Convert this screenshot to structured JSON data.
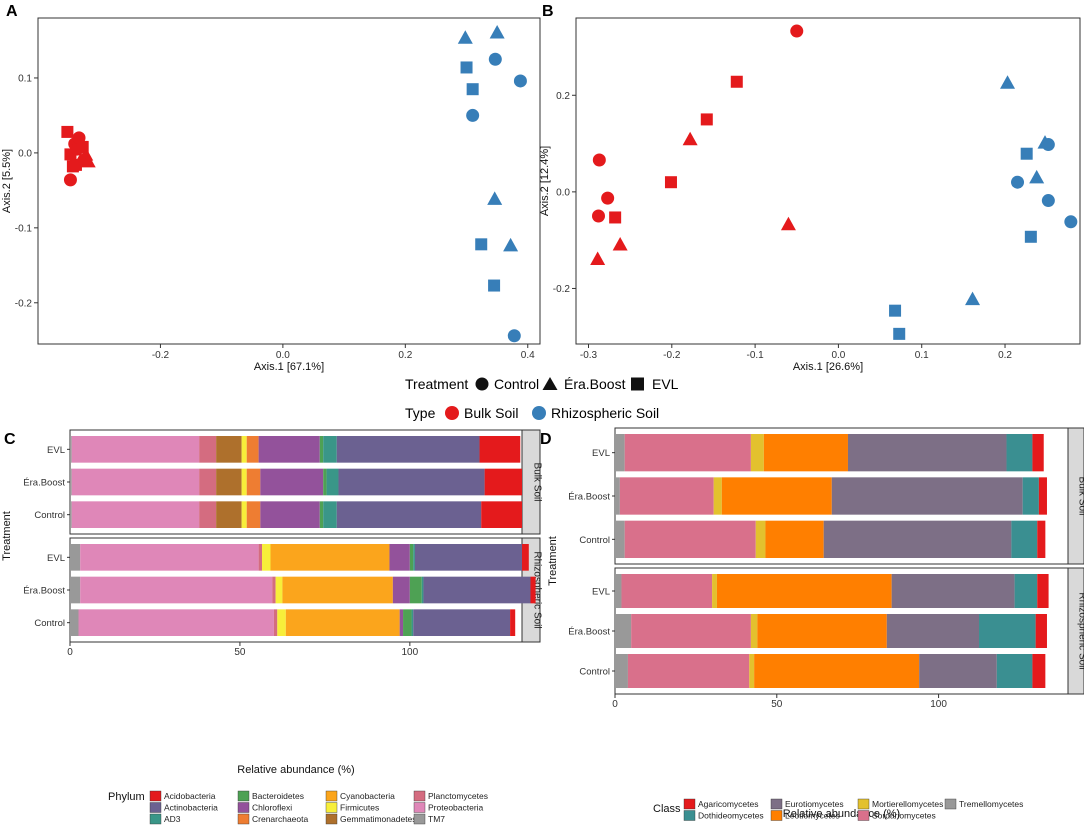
{
  "colors": {
    "bulk": "#e41a1c",
    "rhizo": "#377eb8",
    "strip": "#d9d9d9"
  },
  "legend_top": {
    "treatment_title": "Treatment",
    "treatment_items": [
      "Control",
      "Éra.Boost",
      "EVL"
    ],
    "type_title": "Type",
    "type_items": [
      "Bulk Soil",
      "Rhizospheric Soil"
    ]
  },
  "chart_data": [
    {
      "panel": "A",
      "type": "scatter",
      "xlabel": "Axis.1   [67.1%]",
      "ylabel": "Axis.2   [5.5%]",
      "xlim": [
        -0.4,
        0.42
      ],
      "ylim": [
        -0.255,
        0.18
      ],
      "xticks": [
        -0.2,
        0.0,
        0.2,
        0.4
      ],
      "xtick_labels": [
        "-0.2",
        "0.0",
        "0.2",
        "0.4"
      ],
      "yticks": [
        -0.2,
        -0.1,
        0.0,
        0.1
      ],
      "ytick_labels": [
        "-0.2",
        "-0.1",
        "0.0",
        "0.1"
      ],
      "points": [
        {
          "x": -0.352,
          "y": 0.028,
          "shape": "square",
          "type": "bulk"
        },
        {
          "x": -0.347,
          "y": -0.002,
          "shape": "square",
          "type": "bulk"
        },
        {
          "x": -0.343,
          "y": -0.018,
          "shape": "square",
          "type": "bulk"
        },
        {
          "x": -0.34,
          "y": 0.012,
          "shape": "circle",
          "type": "bulk"
        },
        {
          "x": -0.336,
          "y": 0.005,
          "shape": "circle",
          "type": "bulk"
        },
        {
          "x": -0.333,
          "y": 0.02,
          "shape": "circle",
          "type": "bulk"
        },
        {
          "x": -0.33,
          "y": -0.01,
          "shape": "triangle",
          "type": "bulk"
        },
        {
          "x": -0.327,
          "y": 0.008,
          "shape": "square",
          "type": "bulk"
        },
        {
          "x": -0.322,
          "y": -0.003,
          "shape": "triangle",
          "type": "bulk"
        },
        {
          "x": -0.318,
          "y": -0.012,
          "shape": "triangle",
          "type": "bulk"
        },
        {
          "x": -0.338,
          "y": -0.016,
          "shape": "square",
          "type": "bulk"
        },
        {
          "x": -0.347,
          "y": -0.036,
          "shape": "circle",
          "type": "bulk"
        },
        {
          "x": 0.298,
          "y": 0.153,
          "shape": "triangle",
          "type": "rhizo"
        },
        {
          "x": 0.35,
          "y": 0.16,
          "shape": "triangle",
          "type": "rhizo"
        },
        {
          "x": 0.3,
          "y": 0.114,
          "shape": "square",
          "type": "rhizo"
        },
        {
          "x": 0.347,
          "y": 0.125,
          "shape": "circle",
          "type": "rhizo"
        },
        {
          "x": 0.388,
          "y": 0.096,
          "shape": "circle",
          "type": "rhizo"
        },
        {
          "x": 0.31,
          "y": 0.085,
          "shape": "square",
          "type": "rhizo"
        },
        {
          "x": 0.31,
          "y": 0.05,
          "shape": "circle",
          "type": "rhizo"
        },
        {
          "x": 0.346,
          "y": -0.062,
          "shape": "triangle",
          "type": "rhizo"
        },
        {
          "x": 0.324,
          "y": -0.122,
          "shape": "square",
          "type": "rhizo"
        },
        {
          "x": 0.372,
          "y": -0.124,
          "shape": "triangle",
          "type": "rhizo"
        },
        {
          "x": 0.345,
          "y": -0.177,
          "shape": "square",
          "type": "rhizo"
        },
        {
          "x": 0.378,
          "y": -0.244,
          "shape": "circle",
          "type": "rhizo"
        }
      ]
    },
    {
      "panel": "B",
      "type": "scatter",
      "xlabel": "Axis.1   [26.6%]",
      "ylabel": "Axis.2   [12.4%]",
      "xlim": [
        -0.315,
        0.29
      ],
      "ylim": [
        -0.315,
        0.36
      ],
      "xticks": [
        -0.3,
        -0.2,
        -0.1,
        0.0,
        0.1,
        0.2
      ],
      "xtick_labels": [
        "-0.3",
        "-0.2",
        "-0.1",
        "0.0",
        "0.1",
        "0.2"
      ],
      "yticks": [
        -0.2,
        0.0,
        0.2
      ],
      "ytick_labels": [
        "-0.2",
        "0.0",
        "0.2"
      ],
      "points": [
        {
          "x": -0.05,
          "y": 0.333,
          "shape": "circle",
          "type": "bulk"
        },
        {
          "x": -0.122,
          "y": 0.228,
          "shape": "square",
          "type": "bulk"
        },
        {
          "x": -0.158,
          "y": 0.15,
          "shape": "square",
          "type": "bulk"
        },
        {
          "x": -0.178,
          "y": 0.108,
          "shape": "triangle",
          "type": "bulk"
        },
        {
          "x": -0.287,
          "y": 0.066,
          "shape": "circle",
          "type": "bulk"
        },
        {
          "x": -0.201,
          "y": 0.02,
          "shape": "square",
          "type": "bulk"
        },
        {
          "x": -0.277,
          "y": -0.013,
          "shape": "circle",
          "type": "bulk"
        },
        {
          "x": -0.288,
          "y": -0.05,
          "shape": "circle",
          "type": "bulk"
        },
        {
          "x": -0.268,
          "y": -0.053,
          "shape": "square",
          "type": "bulk"
        },
        {
          "x": -0.06,
          "y": -0.068,
          "shape": "triangle",
          "type": "bulk"
        },
        {
          "x": -0.262,
          "y": -0.11,
          "shape": "triangle",
          "type": "bulk"
        },
        {
          "x": -0.289,
          "y": -0.14,
          "shape": "triangle",
          "type": "bulk"
        },
        {
          "x": 0.203,
          "y": 0.225,
          "shape": "triangle",
          "type": "rhizo"
        },
        {
          "x": 0.248,
          "y": 0.101,
          "shape": "triangle",
          "type": "rhizo"
        },
        {
          "x": 0.252,
          "y": 0.098,
          "shape": "circle",
          "type": "rhizo"
        },
        {
          "x": 0.226,
          "y": 0.079,
          "shape": "square",
          "type": "rhizo"
        },
        {
          "x": 0.238,
          "y": 0.029,
          "shape": "triangle",
          "type": "rhizo"
        },
        {
          "x": 0.215,
          "y": 0.02,
          "shape": "circle",
          "type": "rhizo"
        },
        {
          "x": 0.252,
          "y": -0.018,
          "shape": "circle",
          "type": "rhizo"
        },
        {
          "x": 0.279,
          "y": -0.062,
          "shape": "circle",
          "type": "rhizo"
        },
        {
          "x": 0.231,
          "y": -0.093,
          "shape": "square",
          "type": "rhizo"
        },
        {
          "x": 0.161,
          "y": -0.223,
          "shape": "triangle",
          "type": "rhizo"
        },
        {
          "x": 0.068,
          "y": -0.246,
          "shape": "square",
          "type": "rhizo"
        },
        {
          "x": 0.073,
          "y": -0.294,
          "shape": "square",
          "type": "rhizo"
        }
      ]
    },
    {
      "panel": "C",
      "type": "bar",
      "orientation": "horizontal",
      "stacked": true,
      "xlabel": "Relative abundance (%)",
      "ylabel": "Treatment",
      "xlim": [
        0,
        133
      ],
      "xticks": [
        0,
        50,
        100
      ],
      "xtick_labels": [
        "0",
        "50",
        "100"
      ],
      "categories": [
        "EVL",
        "Éra.Boost",
        "Control"
      ],
      "facets": [
        "Bulk Soil",
        "Rhizospheric Soil"
      ],
      "legend_title": "Phylum",
      "legend": [
        {
          "name": "Acidobacteria",
          "color": "#e41a1c"
        },
        {
          "name": "Actinobacteria",
          "color": "#6b6191"
        },
        {
          "name": "AD3",
          "color": "#3a9688"
        },
        {
          "name": "Bacteroidetes",
          "color": "#4ea154"
        },
        {
          "name": "Chloroflexi",
          "color": "#93529b"
        },
        {
          "name": "Crenarchaeota",
          "color": "#ee7d32"
        },
        {
          "name": "Cyanobacteria",
          "color": "#fba51c"
        },
        {
          "name": "Firmicutes",
          "color": "#f7ee3a"
        },
        {
          "name": "Gemmatimonadetes",
          "color": "#ae702c"
        },
        {
          "name": "Planctomycetes",
          "color": "#d46c80"
        },
        {
          "name": "Proteobacteria",
          "color": "#df87b8"
        },
        {
          "name": "TM7",
          "color": "#999999"
        }
      ],
      "stack_order": [
        "TM7",
        "Proteobacteria",
        "Planctomycetes",
        "Gemmatimonadetes",
        "Firmicutes",
        "Cyanobacteria",
        "Crenarchaeota",
        "Chloroflexi",
        "Bacteroidetes",
        "AD3",
        "Actinobacteria",
        "Acidobacteria"
      ],
      "values": {
        "Bulk Soil": {
          "EVL": [
            0.5,
            37.5,
            5,
            7.5,
            1.5,
            0,
            3.5,
            18,
            1,
            4,
            42,
            12
          ],
          "Éra.Boost": [
            0.5,
            37.5,
            5,
            7.5,
            1.5,
            0,
            4,
            18.5,
            1,
            3.5,
            43,
            11
          ],
          "Control": [
            0.5,
            37.5,
            5,
            7.5,
            1.5,
            0,
            4,
            17.5,
            1,
            4,
            42.5,
            12
          ]
        },
        "Rhizospheric Soil": {
          "EVL": [
            3,
            52.5,
            1,
            0,
            2.5,
            35,
            0,
            6,
            1,
            0.5,
            31.5,
            2
          ],
          "Éra.Boost": [
            3,
            56.5,
            1,
            0,
            2,
            32.5,
            0,
            5,
            3.5,
            0.5,
            31.5,
            1.5
          ],
          "Control": [
            2.5,
            57.5,
            1,
            0,
            2.5,
            33.5,
            0,
            1,
            2.5,
            0.5,
            28.5,
            1.5
          ]
        }
      }
    },
    {
      "panel": "D",
      "type": "bar",
      "orientation": "horizontal",
      "stacked": true,
      "xlabel": "Relative abundance (%)",
      "ylabel": "Treatment",
      "xlim": [
        0,
        140
      ],
      "xticks": [
        0,
        50,
        100
      ],
      "xtick_labels": [
        "0",
        "50",
        "100"
      ],
      "categories": [
        "EVL",
        "Éra.Boost",
        "Control"
      ],
      "facets": [
        "Bulk Soil",
        "Rhizospheric Soil"
      ],
      "legend_title": "Class",
      "legend": [
        {
          "name": "Agaricomycetes",
          "color": "#e41a1c"
        },
        {
          "name": "Dothideomycetes",
          "color": "#3a8f91"
        },
        {
          "name": "Eurotiomycetes",
          "color": "#7d6f86"
        },
        {
          "name": "Leotiomycetes",
          "color": "#ff7f00"
        },
        {
          "name": "Mortierellomycetes",
          "color": "#e3c12e"
        },
        {
          "name": "Sordariomycetes",
          "color": "#d9708b"
        },
        {
          "name": "Tremellomycetes",
          "color": "#999999"
        }
      ],
      "stack_order": [
        "Tremellomycetes",
        "Sordariomycetes",
        "Mortierellomycetes",
        "Leotiomycetes",
        "Eurotiomycetes",
        "Dothideomycetes",
        "Agaricomycetes"
      ],
      "values": {
        "Bulk Soil": {
          "EVL": [
            3,
            39,
            4,
            26,
            49,
            8,
            3.5
          ],
          "Éra.Boost": [
            1.5,
            29,
            2.5,
            34,
            59,
            5,
            2.5
          ],
          "Control": [
            3,
            40.5,
            3,
            18,
            58,
            8,
            2.5
          ]
        },
        "Rhizospheric Soil": {
          "EVL": [
            2,
            28,
            1.5,
            54,
            38,
            7,
            3.5
          ],
          "Éra.Boost": [
            5,
            37,
            2,
            40,
            28.5,
            17.5,
            3.5
          ],
          "Control": [
            4,
            37.5,
            1.5,
            51,
            24,
            11,
            4
          ]
        }
      }
    }
  ]
}
